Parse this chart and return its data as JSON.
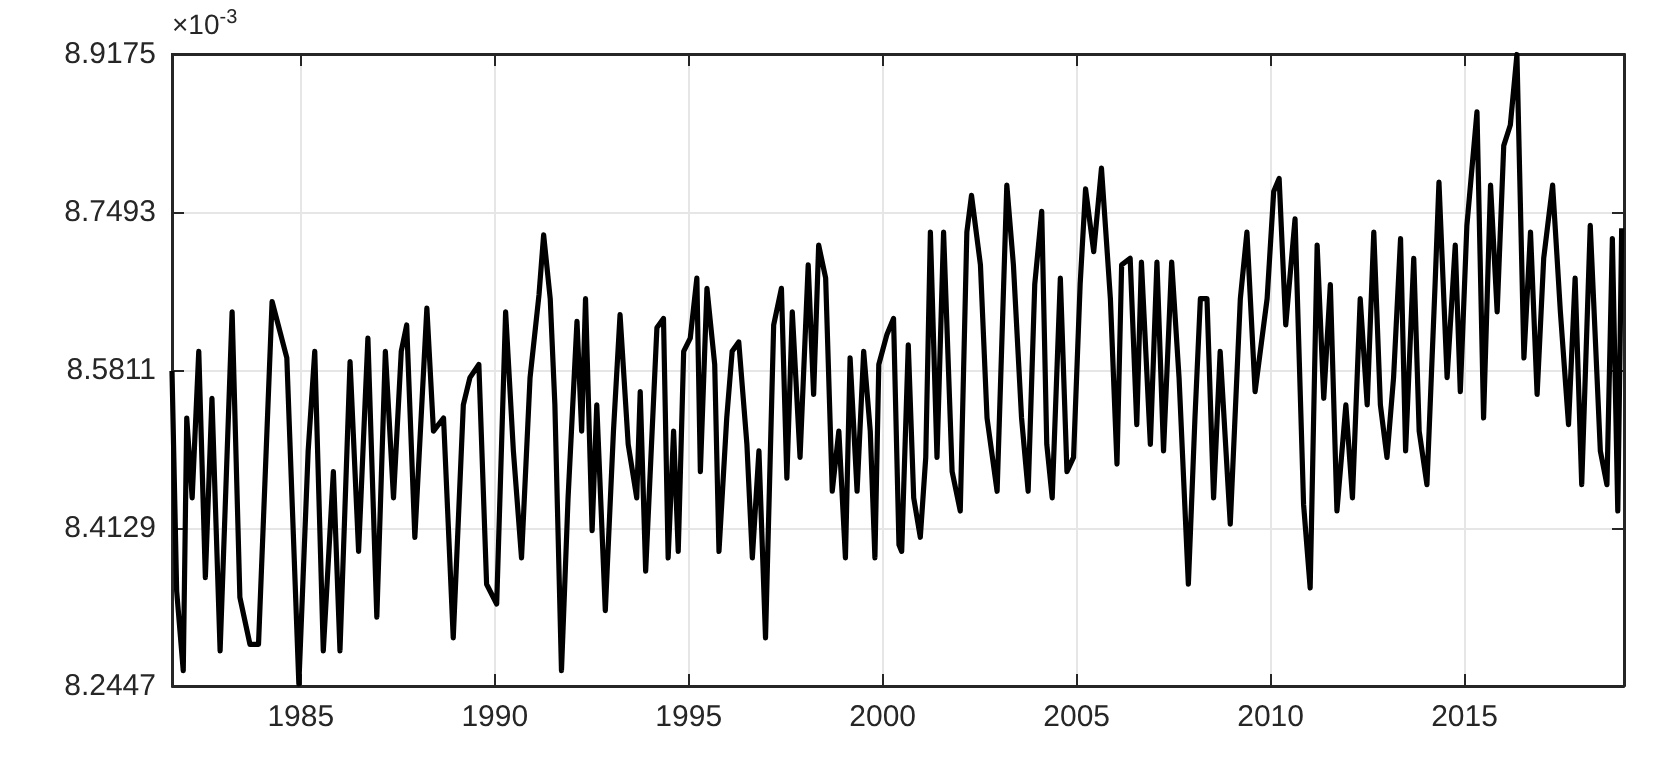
{
  "chart_data": {
    "type": "line",
    "annotations": [
      "×10$^{-3}$"
    ],
    "xlim": [
      1981.68,
      2019.11
    ],
    "xticks": [
      1985,
      1990,
      1995,
      2000,
      2005,
      2010,
      2015
    ],
    "ylim": [
      8.2447,
      8.9175
    ],
    "yticks": [
      8.2447,
      8.4129,
      8.5811,
      8.7493,
      8.9175
    ],
    "grid": true,
    "marker": "none",
    "series": [
      {
        "color": "#000000",
        "x": [
          1981.68,
          1981.8,
          1981.97,
          1982.06,
          1982.2,
          1982.37,
          1982.54,
          1982.71,
          1982.92,
          1983.23,
          1983.43,
          1983.69,
          1983.91,
          1984.26,
          1984.64,
          1984.95,
          1985.19,
          1985.36,
          1985.58,
          1985.84,
          1986.01,
          1986.27,
          1986.49,
          1986.73,
          1986.96,
          1987.18,
          1987.39,
          1987.59,
          1987.73,
          1987.94,
          1988.25,
          1988.42,
          1988.68,
          1988.93,
          1989.19,
          1989.36,
          1989.59,
          1989.79,
          1990.05,
          1990.28,
          1990.48,
          1990.69,
          1990.91,
          1991.14,
          1991.26,
          1991.43,
          1991.55,
          1991.72,
          1991.89,
          1992.12,
          1992.24,
          1992.34,
          1992.51,
          1992.63,
          1992.85,
          1993.06,
          1993.23,
          1993.44,
          1993.66,
          1993.75,
          1993.89,
          1994.18,
          1994.35,
          1994.47,
          1994.61,
          1994.73,
          1994.87,
          1995.04,
          1995.21,
          1995.3,
          1995.47,
          1995.67,
          1995.78,
          1995.98,
          1996.12,
          1996.29,
          1996.5,
          1996.64,
          1996.81,
          1996.98,
          1997.19,
          1997.39,
          1997.53,
          1997.67,
          1997.87,
          1998.08,
          1998.22,
          1998.35,
          1998.53,
          1998.7,
          1998.87,
          1999.04,
          1999.16,
          1999.34,
          1999.51,
          1999.68,
          1999.8,
          1999.9,
          2000.11,
          2000.28,
          2000.42,
          2000.49,
          2000.66,
          2000.8,
          2000.97,
          2001.11,
          2001.23,
          2001.4,
          2001.57,
          2001.79,
          2002.0,
          2002.17,
          2002.29,
          2002.52,
          2002.69,
          2002.95,
          2003.2,
          2003.37,
          2003.58,
          2003.75,
          2003.92,
          2004.1,
          2004.23,
          2004.37,
          2004.58,
          2004.75,
          2004.92,
          2005.09,
          2005.23,
          2005.44,
          2005.64,
          2005.87,
          2006.04,
          2006.16,
          2006.38,
          2006.55,
          2006.67,
          2006.9,
          2007.07,
          2007.24,
          2007.45,
          2007.64,
          2007.88,
          2008.05,
          2008.19,
          2008.36,
          2008.53,
          2008.7,
          2008.96,
          2009.22,
          2009.39,
          2009.6,
          2009.91,
          2010.08,
          2010.22,
          2010.39,
          2010.63,
          2010.85,
          2011.02,
          2011.2,
          2011.37,
          2011.54,
          2011.71,
          2011.94,
          2012.11,
          2012.31,
          2012.49,
          2012.66,
          2012.83,
          2013.0,
          2013.17,
          2013.35,
          2013.48,
          2013.69,
          2013.83,
          2014.03,
          2014.24,
          2014.34,
          2014.55,
          2014.76,
          2014.89,
          2015.06,
          2015.32,
          2015.49,
          2015.67,
          2015.84,
          2016.01,
          2016.18,
          2016.35,
          2016.53,
          2016.7,
          2016.87,
          2017.04,
          2017.27,
          2017.47,
          2017.68,
          2017.85,
          2018.02,
          2018.24,
          2018.5,
          2018.67,
          2018.81,
          2018.95,
          2019.05
        ],
        "values": [
          8.58,
          8.346,
          8.261,
          8.53,
          8.445,
          8.601,
          8.36,
          8.551,
          8.282,
          8.643,
          8.339,
          8.289,
          8.289,
          8.654,
          8.594,
          8.247,
          8.495,
          8.601,
          8.282,
          8.473,
          8.282,
          8.59,
          8.388,
          8.615,
          8.318,
          8.601,
          8.445,
          8.601,
          8.629,
          8.403,
          8.647,
          8.516,
          8.53,
          8.296,
          8.544,
          8.573,
          8.587,
          8.353,
          8.332,
          8.643,
          8.495,
          8.381,
          8.573,
          8.661,
          8.725,
          8.657,
          8.544,
          8.261,
          8.445,
          8.633,
          8.516,
          8.657,
          8.41,
          8.544,
          8.325,
          8.516,
          8.64,
          8.502,
          8.445,
          8.558,
          8.367,
          8.626,
          8.636,
          8.381,
          8.516,
          8.388,
          8.601,
          8.615,
          8.679,
          8.473,
          8.668,
          8.587,
          8.388,
          8.53,
          8.601,
          8.611,
          8.502,
          8.381,
          8.495,
          8.296,
          8.629,
          8.668,
          8.466,
          8.643,
          8.488,
          8.693,
          8.555,
          8.714,
          8.679,
          8.452,
          8.516,
          8.381,
          8.594,
          8.452,
          8.601,
          8.516,
          8.381,
          8.587,
          8.619,
          8.636,
          8.395,
          8.388,
          8.608,
          8.445,
          8.403,
          8.488,
          8.728,
          8.488,
          8.728,
          8.473,
          8.431,
          8.728,
          8.767,
          8.693,
          8.53,
          8.452,
          8.778,
          8.693,
          8.53,
          8.452,
          8.672,
          8.75,
          8.502,
          8.445,
          8.679,
          8.473,
          8.488,
          8.672,
          8.774,
          8.707,
          8.796,
          8.657,
          8.481,
          8.693,
          8.7,
          8.523,
          8.696,
          8.502,
          8.696,
          8.495,
          8.696,
          8.573,
          8.353,
          8.53,
          8.657,
          8.657,
          8.445,
          8.601,
          8.417,
          8.657,
          8.728,
          8.558,
          8.657,
          8.771,
          8.785,
          8.629,
          8.742,
          8.438,
          8.349,
          8.714,
          8.551,
          8.672,
          8.431,
          8.544,
          8.445,
          8.657,
          8.544,
          8.728,
          8.544,
          8.488,
          8.573,
          8.721,
          8.495,
          8.7,
          8.516,
          8.459,
          8.672,
          8.781,
          8.573,
          8.714,
          8.558,
          8.735,
          8.856,
          8.53,
          8.778,
          8.643,
          8.82,
          8.842,
          8.917,
          8.594,
          8.728,
          8.555,
          8.7,
          8.778,
          8.643,
          8.523,
          8.679,
          8.459,
          8.735,
          8.495,
          8.459,
          8.721,
          8.431,
          8.732
        ]
      }
    ]
  }
}
